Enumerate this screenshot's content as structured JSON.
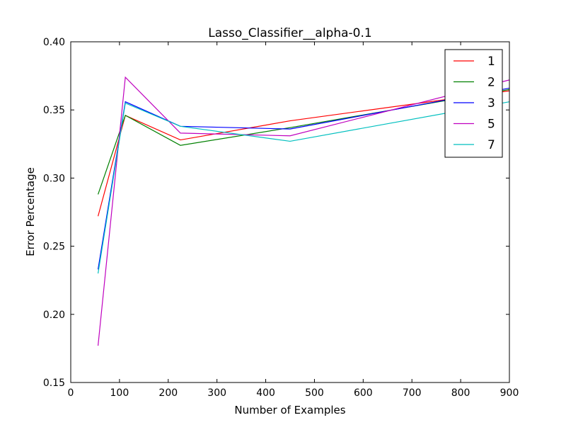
{
  "chart_data": {
    "type": "line",
    "title": "Lasso_Classifier__alpha-0.1",
    "xlabel": "Number of Examples",
    "ylabel": "Error Percentage",
    "xlim": [
      0,
      900
    ],
    "ylim": [
      0.15,
      0.4
    ],
    "x_ticks": [
      "0",
      "100",
      "200",
      "300",
      "400",
      "500",
      "600",
      "700",
      "800",
      "900"
    ],
    "y_ticks": [
      "0.15",
      "0.20",
      "0.25",
      "0.30",
      "0.35",
      "0.40"
    ],
    "grid": false,
    "legend_position": "top-right",
    "x": [
      56,
      112,
      225,
      450,
      900
    ],
    "series": [
      {
        "name": "1",
        "color": "#ff0000",
        "values": [
          0.272,
          0.346,
          0.328,
          0.342,
          0.364
        ]
      },
      {
        "name": "2",
        "color": "#008000",
        "values": [
          0.288,
          0.346,
          0.324,
          0.337,
          0.365
        ]
      },
      {
        "name": "3",
        "color": "#0000ff",
        "values": [
          0.233,
          0.356,
          0.338,
          0.336,
          0.366
        ]
      },
      {
        "name": "5",
        "color": "#bf00bf",
        "values": [
          0.177,
          0.374,
          0.333,
          0.331,
          0.372
        ]
      },
      {
        "name": "7",
        "color": "#00bfbf",
        "values": [
          0.23,
          0.355,
          0.338,
          0.327,
          0.356
        ]
      }
    ]
  }
}
